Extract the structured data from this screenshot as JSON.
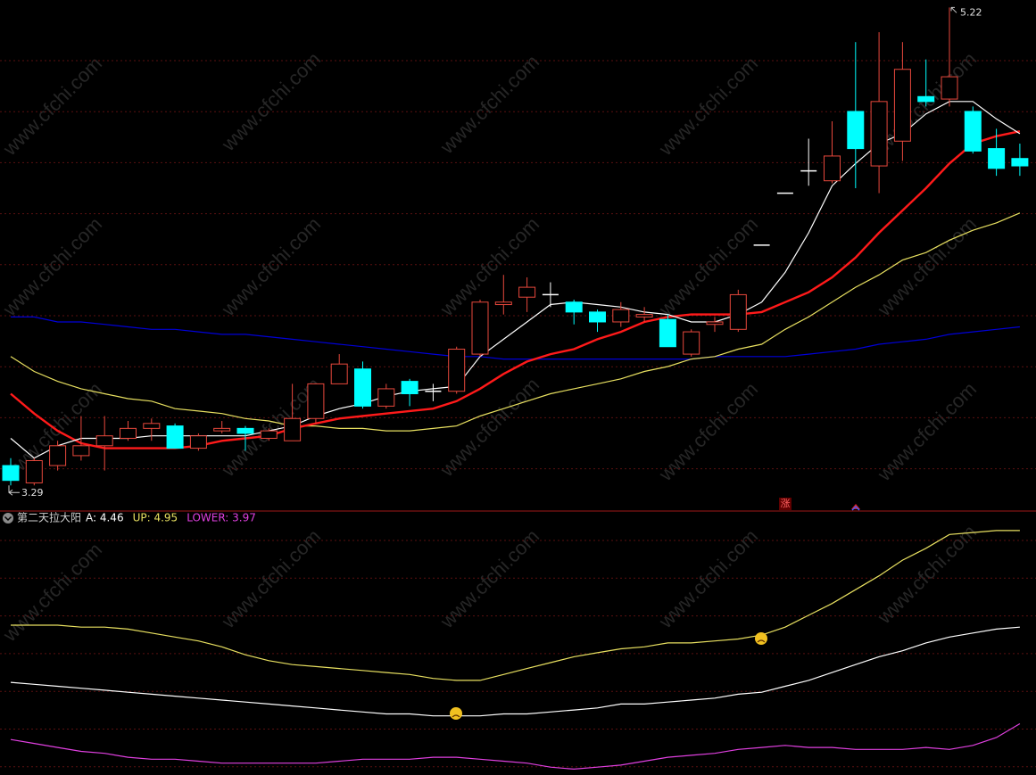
{
  "chart_data": [
    {
      "type": "candlestick",
      "ylim": [
        3.19,
        5.25
      ],
      "up_color": "#e8483c",
      "down_color": "#00ffff",
      "flat_color": "#ffffff",
      "open": [
        3.37,
        3.3,
        3.37,
        3.41,
        3.45,
        3.48,
        3.52,
        3.53,
        3.44,
        3.51,
        3.52,
        3.48,
        3.47,
        3.56,
        3.7,
        3.76,
        3.61,
        3.71,
        3.67,
        3.67,
        3.82,
        4.02,
        4.05,
        4.06,
        4.03,
        3.99,
        3.95,
        3.97,
        3.96,
        3.82,
        3.94,
        3.92,
        4.26,
        4.47,
        4.56,
        4.52,
        4.8,
        4.58,
        4.68,
        4.86,
        4.85,
        4.8,
        4.65,
        4.61
      ],
      "close": [
        3.31,
        3.39,
        3.45,
        3.45,
        3.49,
        3.52,
        3.54,
        3.44,
        3.49,
        3.52,
        3.5,
        3.51,
        3.56,
        3.7,
        3.78,
        3.61,
        3.68,
        3.66,
        3.67,
        3.84,
        4.03,
        4.03,
        4.09,
        4.06,
        3.99,
        3.95,
        4.0,
        3.98,
        3.85,
        3.91,
        3.95,
        4.06,
        4.26,
        4.47,
        4.56,
        4.62,
        4.65,
        4.84,
        4.97,
        4.84,
        4.94,
        4.64,
        4.57,
        4.58
      ],
      "high": [
        3.4,
        3.4,
        3.47,
        3.57,
        3.57,
        3.55,
        3.56,
        3.54,
        3.5,
        3.55,
        3.53,
        3.52,
        3.7,
        3.7,
        3.82,
        3.79,
        3.7,
        3.72,
        3.7,
        3.85,
        4.04,
        4.14,
        4.13,
        4.11,
        4.04,
        4.0,
        4.03,
        4.01,
        3.98,
        3.92,
        3.97,
        4.08,
        4.26,
        4.47,
        4.69,
        4.76,
        5.08,
        5.12,
        5.08,
        5.01,
        5.22,
        4.82,
        4.73,
        4.67
      ],
      "low": [
        3.29,
        3.29,
        3.35,
        3.39,
        3.35,
        3.47,
        3.47,
        3.44,
        3.43,
        3.5,
        3.43,
        3.47,
        3.47,
        3.54,
        3.7,
        3.6,
        3.6,
        3.61,
        3.63,
        3.66,
        3.81,
        3.98,
        3.99,
        4.01,
        3.94,
        3.91,
        3.93,
        3.95,
        3.85,
        3.81,
        3.91,
        3.91,
        4.26,
        4.47,
        4.5,
        4.51,
        4.49,
        4.47,
        4.6,
        4.82,
        4.82,
        4.63,
        4.54,
        4.54
      ],
      "lines": [
        {
          "color": "#0000d8",
          "width": 1.2,
          "values": [
            3.97,
            3.97,
            3.95,
            3.95,
            3.94,
            3.93,
            3.92,
            3.92,
            3.91,
            3.9,
            3.9,
            3.89,
            3.88,
            3.87,
            3.86,
            3.85,
            3.84,
            3.83,
            3.82,
            3.81,
            3.81,
            3.8,
            3.8,
            3.8,
            3.8,
            3.8,
            3.8,
            3.8,
            3.8,
            3.8,
            3.81,
            3.81,
            3.81,
            3.81,
            3.82,
            3.83,
            3.84,
            3.86,
            3.87,
            3.88,
            3.9,
            3.91,
            3.92,
            3.93
          ]
        },
        {
          "color": "#e8e060",
          "width": 1.2,
          "values": [
            3.81,
            3.75,
            3.71,
            3.68,
            3.66,
            3.64,
            3.63,
            3.6,
            3.59,
            3.58,
            3.56,
            3.55,
            3.53,
            3.53,
            3.52,
            3.52,
            3.51,
            3.51,
            3.52,
            3.53,
            3.57,
            3.6,
            3.63,
            3.66,
            3.68,
            3.7,
            3.72,
            3.75,
            3.77,
            3.8,
            3.81,
            3.84,
            3.86,
            3.92,
            3.97,
            4.03,
            4.09,
            4.14,
            4.2,
            4.23,
            4.28,
            4.32,
            4.35,
            4.39
          ]
        },
        {
          "color": "#ff1a1a",
          "width": 2.4,
          "values": [
            3.66,
            3.58,
            3.51,
            3.46,
            3.44,
            3.44,
            3.44,
            3.44,
            3.45,
            3.47,
            3.48,
            3.49,
            3.52,
            3.54,
            3.56,
            3.57,
            3.58,
            3.59,
            3.6,
            3.63,
            3.68,
            3.74,
            3.79,
            3.82,
            3.84,
            3.88,
            3.91,
            3.95,
            3.97,
            3.98,
            3.98,
            3.98,
            3.99,
            4.03,
            4.07,
            4.13,
            4.21,
            4.31,
            4.4,
            4.49,
            4.59,
            4.67,
            4.7,
            4.72
          ]
        },
        {
          "color": "#ffffff",
          "width": 1.2,
          "values": [
            3.48,
            3.4,
            3.45,
            3.48,
            3.48,
            3.48,
            3.49,
            3.49,
            3.49,
            3.49,
            3.49,
            3.51,
            3.53,
            3.57,
            3.6,
            3.62,
            3.65,
            3.67,
            3.68,
            3.69,
            3.81,
            3.88,
            3.95,
            4.02,
            4.03,
            4.02,
            4.01,
            3.99,
            3.98,
            3.95,
            3.95,
            3.98,
            4.03,
            4.15,
            4.31,
            4.5,
            4.59,
            4.67,
            4.71,
            4.79,
            4.84,
            4.84,
            4.77,
            4.71
          ]
        }
      ],
      "high_label": "5.22",
      "low_label": "3.29",
      "badge": "涨"
    },
    {
      "type": "line",
      "title": "第二天拉大阳",
      "ylim": [
        3.71,
        5.04
      ],
      "series": [
        {
          "name": "A: 4.46",
          "color": "#ffffff",
          "values": [
            4.18,
            4.17,
            4.16,
            4.15,
            4.14,
            4.13,
            4.12,
            4.11,
            4.1,
            4.09,
            4.08,
            4.07,
            4.06,
            4.05,
            4.04,
            4.03,
            4.02,
            4.02,
            4.01,
            4.01,
            4.01,
            4.02,
            4.02,
            4.03,
            4.04,
            4.05,
            4.07,
            4.07,
            4.08,
            4.09,
            4.1,
            4.12,
            4.13,
            4.16,
            4.19,
            4.23,
            4.27,
            4.31,
            4.34,
            4.38,
            4.41,
            4.43,
            4.45,
            4.46
          ]
        },
        {
          "name": "UP: 4.95",
          "color": "#e8e060",
          "values": [
            4.47,
            4.47,
            4.47,
            4.46,
            4.46,
            4.45,
            4.43,
            4.41,
            4.39,
            4.36,
            4.32,
            4.29,
            4.27,
            4.26,
            4.25,
            4.24,
            4.23,
            4.22,
            4.2,
            4.19,
            4.19,
            4.22,
            4.25,
            4.28,
            4.31,
            4.33,
            4.35,
            4.36,
            4.38,
            4.38,
            4.39,
            4.4,
            4.42,
            4.46,
            4.52,
            4.58,
            4.65,
            4.72,
            4.8,
            4.86,
            4.93,
            4.94,
            4.95,
            4.95
          ]
        },
        {
          "name": "LOWER: 3.97",
          "color": "#e040e0",
          "values": [
            3.89,
            3.87,
            3.85,
            3.83,
            3.82,
            3.8,
            3.79,
            3.79,
            3.78,
            3.77,
            3.77,
            3.77,
            3.77,
            3.77,
            3.78,
            3.79,
            3.79,
            3.79,
            3.8,
            3.8,
            3.79,
            3.78,
            3.77,
            3.75,
            3.74,
            3.75,
            3.76,
            3.78,
            3.8,
            3.81,
            3.82,
            3.84,
            3.85,
            3.86,
            3.85,
            3.85,
            3.84,
            3.84,
            3.84,
            3.85,
            3.84,
            3.86,
            3.9,
            3.97
          ]
        }
      ]
    }
  ],
  "watermark": "www.cfchi.com"
}
